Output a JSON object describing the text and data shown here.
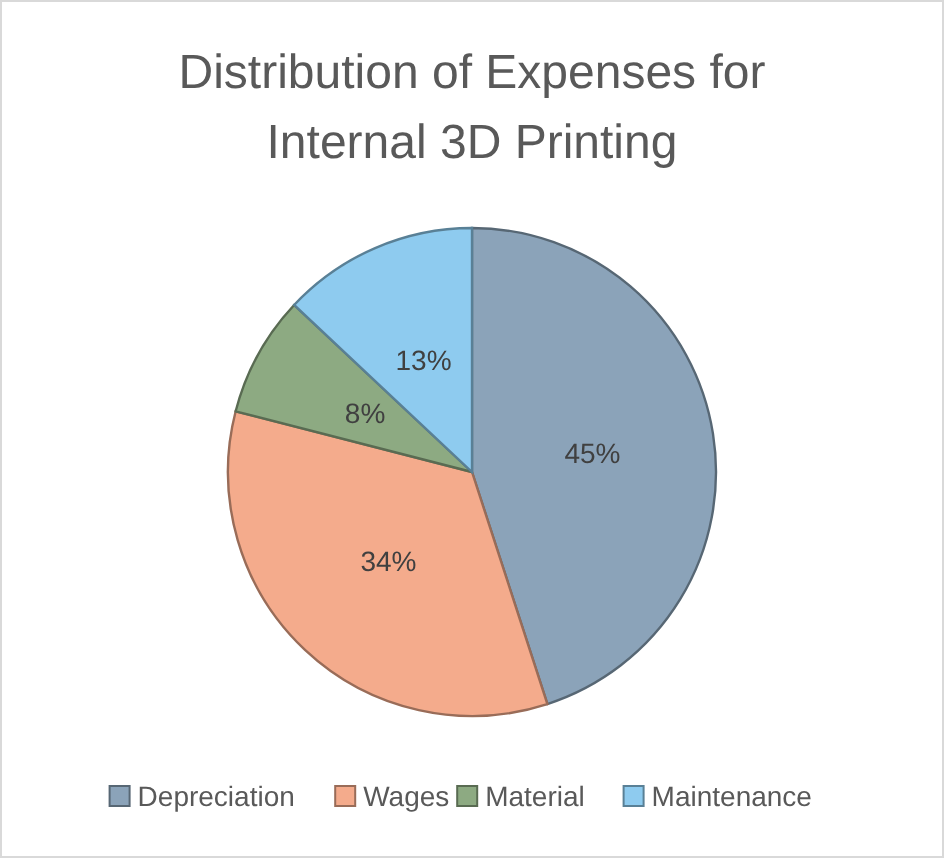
{
  "chart_data": {
    "type": "pie",
    "title": "Distribution of Expenses for Internal 3D Printing",
    "categories": [
      "Depreciation",
      "Wages",
      "Material",
      "Maintenance"
    ],
    "values": [
      45,
      34,
      8,
      13
    ],
    "colors": [
      "#8ba3b9",
      "#f4ab8c",
      "#8daa82",
      "#8ecbef"
    ],
    "value_labels": [
      "45%",
      "34%",
      "8%",
      "13%"
    ],
    "legend": "bottom"
  }
}
